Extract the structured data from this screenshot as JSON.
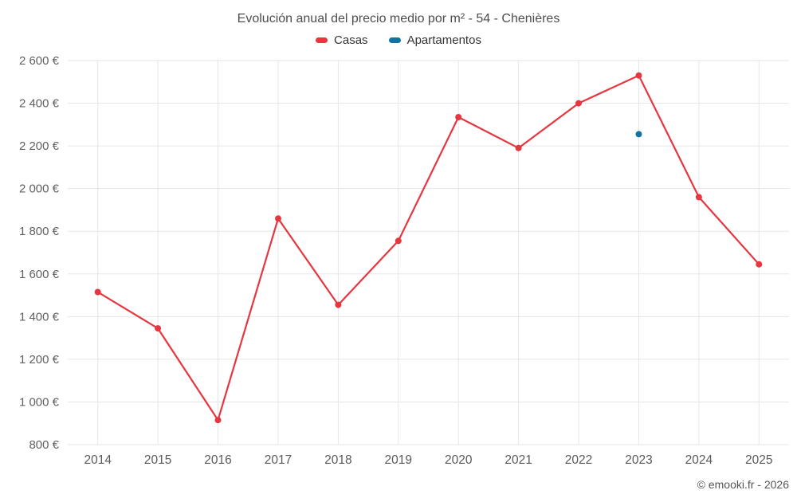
{
  "page": {
    "copyright": "© emooki.fr - 2026"
  },
  "legend": {
    "items": [
      {
        "label": "Casas",
        "color": "#e6363f"
      },
      {
        "label": "Apartamentos",
        "color": "#1273a3"
      }
    ]
  },
  "chart_data": {
    "type": "line",
    "title": "Evolución anual del precio medio por m² - 54 - Chenières",
    "categories": [
      "2014",
      "2015",
      "2016",
      "2017",
      "2018",
      "2019",
      "2020",
      "2021",
      "2022",
      "2023",
      "2024",
      "2025"
    ],
    "series": [
      {
        "name": "Casas",
        "color": "#e6363f",
        "values": [
          1515,
          1345,
          915,
          1860,
          1455,
          1755,
          2335,
          2190,
          2400,
          2530,
          1960,
          1645
        ]
      },
      {
        "name": "Apartamentos",
        "color": "#1273a3",
        "values": [
          null,
          null,
          null,
          null,
          null,
          null,
          null,
          null,
          null,
          2255,
          null,
          null
        ]
      }
    ],
    "y_axis": {
      "min": 800,
      "max": 2600,
      "tick_interval": 200,
      "ticks": [
        800,
        1000,
        1200,
        1400,
        1600,
        1800,
        2000,
        2200,
        2400,
        2600
      ],
      "tick_labels": [
        "800 €",
        "1 000 €",
        "1 200 €",
        "1 400 €",
        "1 600 €",
        "1 800 €",
        "2 000 €",
        "2 200 €",
        "2 400 €",
        "2 600 €"
      ],
      "unit": "€"
    },
    "xlabel": "",
    "ylabel": "",
    "grid": true,
    "legend_position": "top"
  }
}
